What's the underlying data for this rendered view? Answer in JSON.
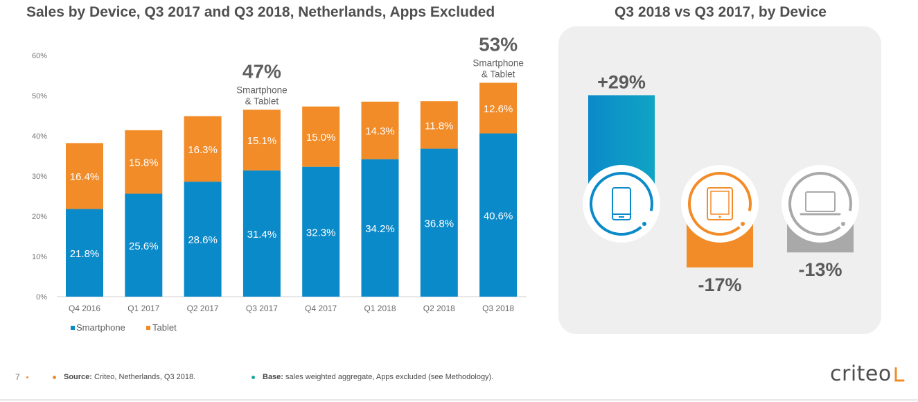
{
  "page": {
    "title_left": "Sales by Device, Q3 2017 and Q3 2018, Netherlands, Apps Excluded",
    "title_right": "Q3 2018 vs Q3 2017, by Device"
  },
  "chart_data": [
    {
      "type": "bar",
      "stacked": true,
      "categories": [
        "Q4 2016",
        "Q1 2017",
        "Q2 2017",
        "Q3 2017",
        "Q4 2017",
        "Q1 2018",
        "Q2 2018",
        "Q3 2018"
      ],
      "series": [
        {
          "name": "Smartphone",
          "color": "#0b8ac9",
          "values": [
            21.8,
            25.6,
            28.6,
            31.4,
            32.3,
            34.2,
            36.8,
            40.6
          ],
          "labels": [
            "21.8%",
            "25.6%",
            "28.6%",
            "31.4%",
            "32.3%",
            "34.2%",
            "36.8%",
            "40.6%"
          ]
        },
        {
          "name": "Tablet",
          "color": "#f28c28",
          "values": [
            16.4,
            15.8,
            16.3,
            15.1,
            15.0,
            14.3,
            11.8,
            12.6
          ],
          "labels": [
            "16.4%",
            "15.8%",
            "16.3%",
            "15.1%",
            "15.0%",
            "14.3%",
            "11.8%",
            "12.6%"
          ]
        }
      ],
      "ylim": [
        0,
        60
      ],
      "yticks": [
        "0%",
        "10%",
        "20%",
        "30%",
        "40%",
        "50%",
        "60%"
      ],
      "grid": false,
      "legend": "bottom-left",
      "annotations": [
        {
          "category": "Q3 2017",
          "value": "47%",
          "text_lines": [
            "Smartphone",
            "& Tablet"
          ]
        },
        {
          "category": "Q3 2018",
          "value": "53%",
          "text_lines": [
            "Smartphone",
            "& Tablet"
          ]
        }
      ]
    },
    {
      "type": "bar",
      "categories": [
        "Smartphone",
        "Tablet",
        "Desktop"
      ],
      "values": [
        29,
        -17,
        -13
      ],
      "labels": [
        "+29%",
        "-17%",
        "-13%"
      ],
      "colors": [
        "#0b8ac9",
        "#f28c28",
        "#a9a9a9"
      ],
      "icons": [
        "smartphone-icon",
        "tablet-icon",
        "laptop-icon"
      ]
    }
  ],
  "footer": {
    "page_number": "7",
    "source_label": "Source:",
    "source_text": " Criteo, Netherlands, Q3 2018.",
    "base_label": "Base:",
    "base_text": " sales weighted aggregate, Apps excluded (see Methodology).",
    "source_dot_color": "#f28c28",
    "base_dot_color": "#1aa89a"
  },
  "logo": {
    "text": "criteo",
    "mark_color": "#f28c28"
  }
}
